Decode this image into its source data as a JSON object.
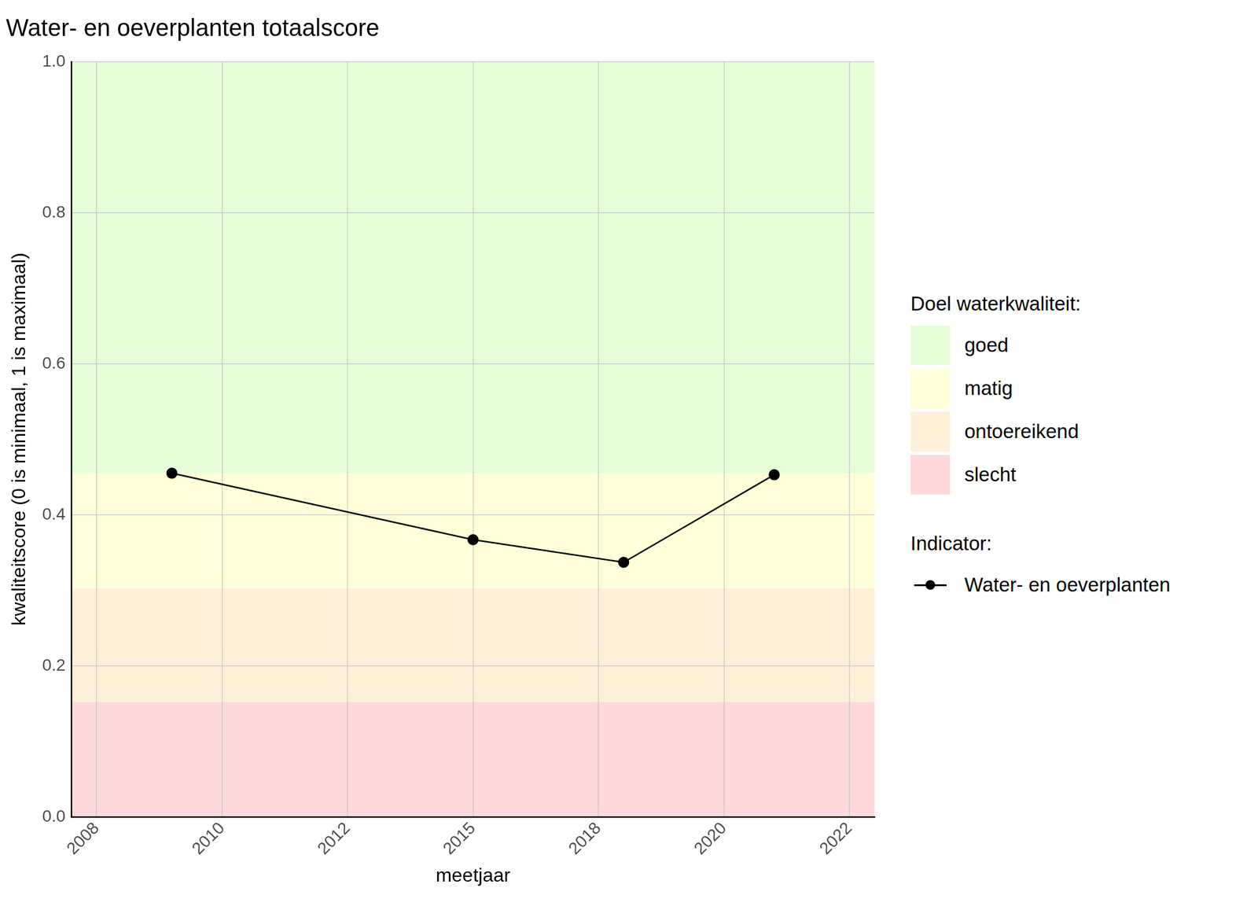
{
  "chart_data": {
    "type": "line",
    "title": "Water- en oeverplanten totaalscore",
    "x_label": "meetjaar",
    "y_label": "kwaliteitscore (0 is minimaal, 1 is maximaal)",
    "x": [
      2009,
      2015,
      2018,
      2021
    ],
    "series": [
      {
        "name": "Water- en oeverplanten",
        "color": "#000000",
        "values": [
          0.455,
          0.367,
          0.337,
          0.453
        ],
        "marker": "circle",
        "line_style": "solid"
      }
    ],
    "xlim": [
      2007,
      2023
    ],
    "xticks": [
      {
        "value": 2007.5,
        "label": "2008"
      },
      {
        "value": 2010,
        "label": "2010"
      },
      {
        "value": 2012.5,
        "label": "2012"
      },
      {
        "value": 2015,
        "label": "2015"
      },
      {
        "value": 2017.5,
        "label": "2018"
      },
      {
        "value": 2020,
        "label": "2020"
      },
      {
        "value": 2022.5,
        "label": "2022"
      }
    ],
    "ylim": [
      0,
      1
    ],
    "yticks": [
      {
        "value": 0,
        "label": "0.0"
      },
      {
        "value": 0.2,
        "label": "0.2"
      },
      {
        "value": 0.4,
        "label": "0.4"
      },
      {
        "value": 0.6,
        "label": "0.6"
      },
      {
        "value": 0.8,
        "label": "0.8"
      },
      {
        "value": 1,
        "label": "1.0"
      }
    ],
    "grid": true,
    "legend": "right",
    "legend_title": "Indicator:",
    "bands_title": "Doel waterkwaliteit:",
    "bands": [
      {
        "name": "goed",
        "from": 0.455,
        "to": 1,
        "color": "#e6ffd9"
      },
      {
        "name": "matig",
        "from": 0.303,
        "to": 0.455,
        "color": "#ffffd9"
      },
      {
        "name": "ontoereikend",
        "from": 0.152,
        "to": 0.303,
        "color": "#fff0d9"
      },
      {
        "name": "slecht",
        "from": 0,
        "to": 0.152,
        "color": "#ffd9d9"
      }
    ]
  }
}
